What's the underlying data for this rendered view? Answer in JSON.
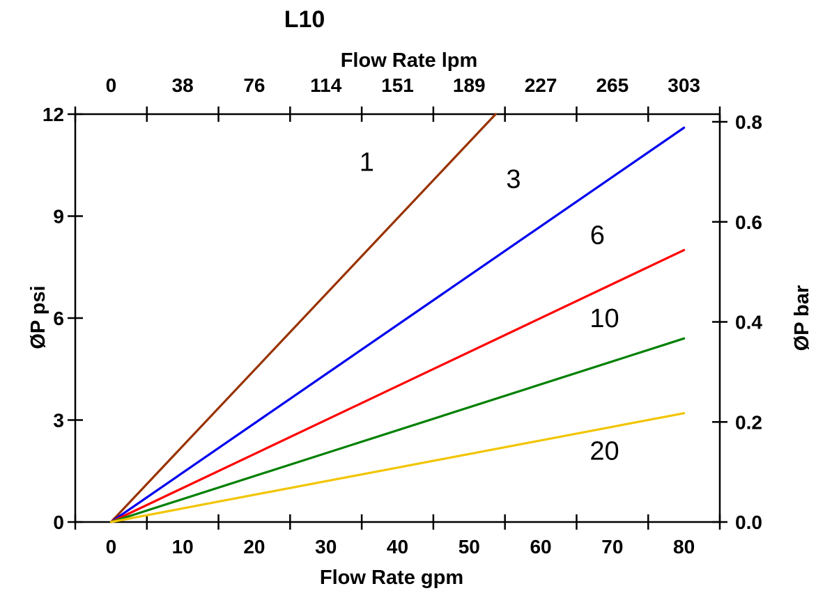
{
  "title": "L10",
  "chart_data": {
    "type": "line",
    "title": "L10",
    "xlabel_top": "Flow Rate lpm",
    "xlabel_bottom": "Flow Rate gpm",
    "ylabel_left": "ØP psi",
    "ylabel_right": "ØP bar",
    "x_range_gpm": [
      0,
      80
    ],
    "y_range_psi": [
      0,
      12
    ],
    "y_range_bar": [
      0,
      0.8
    ],
    "x_ticks_gpm": [
      0,
      10,
      20,
      30,
      40,
      50,
      60,
      70,
      80
    ],
    "x_ticks_lpm": [
      0,
      38,
      76,
      114,
      151,
      189,
      227,
      265,
      303
    ],
    "y_ticks_psi": [
      0,
      3,
      6,
      9,
      12
    ],
    "y_ticks_bar": [
      "0.0",
      "0.2",
      "0.4",
      "0.6",
      "0.8"
    ],
    "grid": false,
    "legend": "none (labels placed on curves)",
    "tick_style": "cross ticks; x-axis labels centered between boundary ticks",
    "series": [
      {
        "name": "1",
        "color": "#993300",
        "points_gpm_psi": [
          [
            0,
            0
          ],
          [
            53.7,
            12.0
          ]
        ],
        "clipped_at_plot_top": true,
        "label_pos_gpm_psi": [
          35.7,
          10.6
        ]
      },
      {
        "name": "3",
        "color": "#0000EE",
        "points_gpm_psi": [
          [
            0,
            0
          ],
          [
            80,
            11.6
          ]
        ],
        "clipped_at_plot_top": false,
        "label_pos_gpm_psi": [
          56.2,
          10.1
        ]
      },
      {
        "name": "6",
        "color": "#FF0000",
        "points_gpm_psi": [
          [
            0,
            0
          ],
          [
            80,
            8.0
          ]
        ],
        "clipped_at_plot_top": false,
        "label_pos_gpm_psi": [
          67.9,
          8.45
        ]
      },
      {
        "name": "10",
        "color": "#008000",
        "points_gpm_psi": [
          [
            0,
            0
          ],
          [
            80,
            5.4
          ]
        ],
        "clipped_at_plot_top": false,
        "label_pos_gmp_psi_note": "",
        "label_pos_gpm_psi": [
          68.9,
          6.0
        ]
      },
      {
        "name": "20",
        "color": "#F2C500",
        "points_gpm_psi": [
          [
            0,
            0
          ],
          [
            80,
            3.2
          ]
        ],
        "clipped_at_plot_top": false,
        "label_pos_gpm_psi": [
          68.9,
          2.1
        ]
      }
    ]
  }
}
